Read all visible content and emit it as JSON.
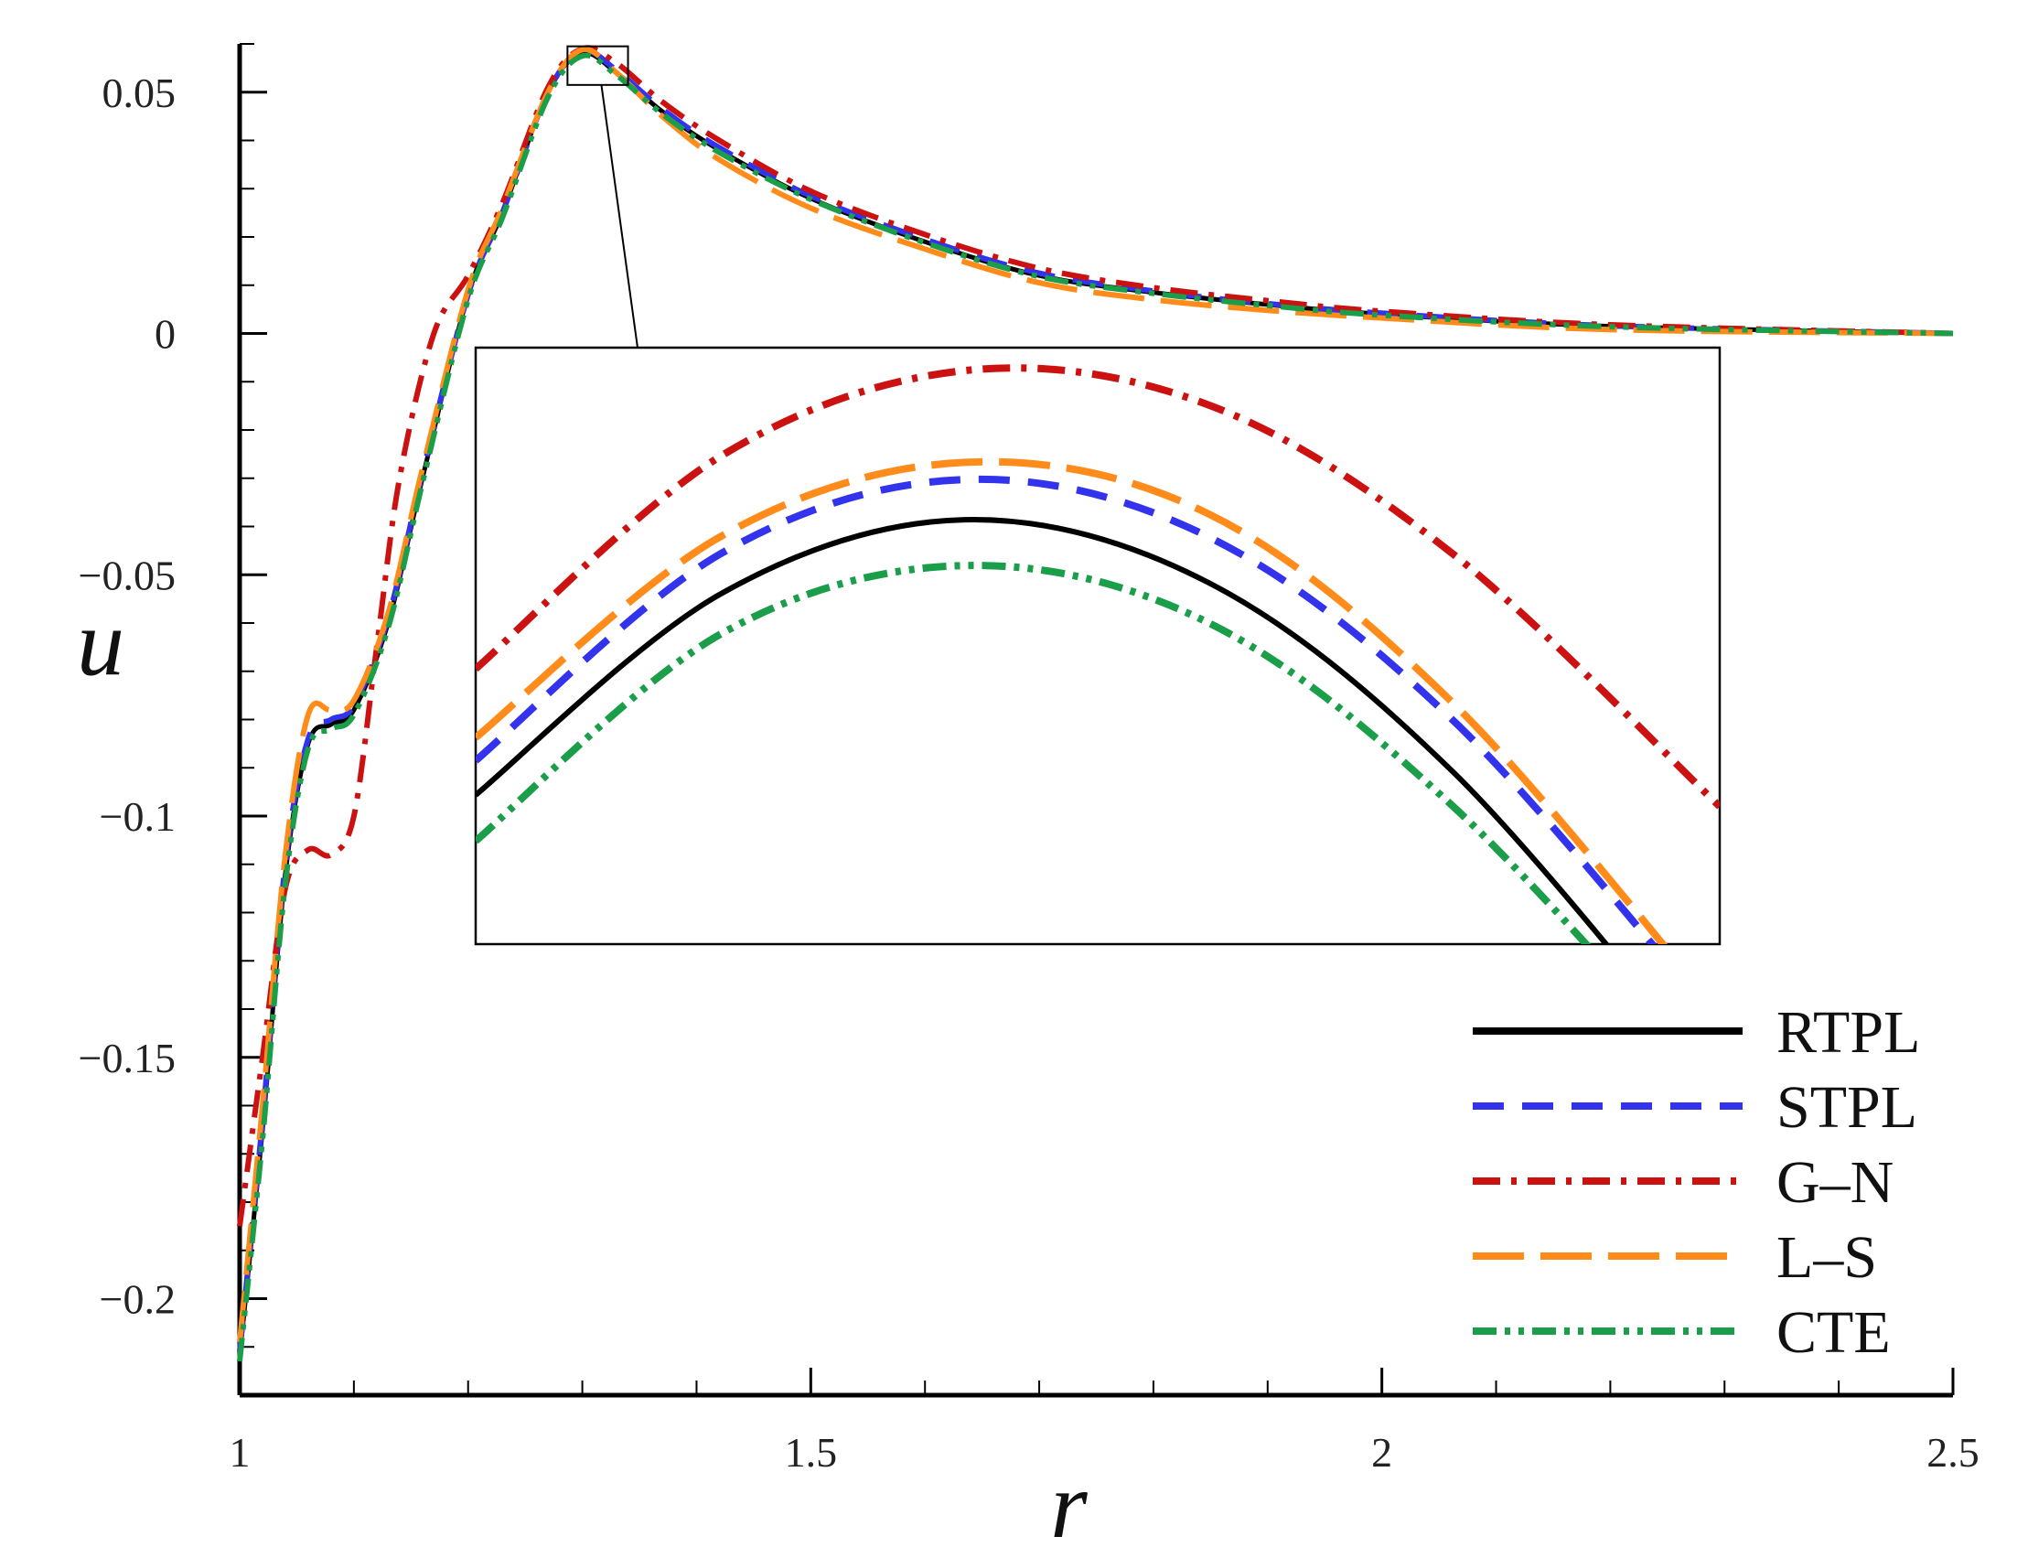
{
  "chart_data": {
    "type": "line",
    "xlabel": "r",
    "ylabel": "u",
    "xlim": [
      1,
      2.5
    ],
    "ylim": [
      -0.22,
      0.06
    ],
    "x_ticks": [
      1,
      1.5,
      2,
      2.5
    ],
    "x_tick_labels": [
      "1",
      "1.5",
      "2",
      "2.5"
    ],
    "y_ticks": [
      0.05,
      0,
      -0.05,
      -0.1,
      -0.15,
      -0.2
    ],
    "y_tick_labels": [
      "0.05",
      "0",
      "−0.05",
      "−0.1",
      "−0.15",
      "−0.2"
    ],
    "grid": false,
    "legend_position": "bottom-right",
    "series": [
      {
        "name": "RTPL",
        "color": "#000000",
        "dash": "solid",
        "x": [
          1.0,
          1.02,
          1.04,
          1.06,
          1.08,
          1.1,
          1.13,
          1.16,
          1.2,
          1.23,
          1.27,
          1.3,
          1.33,
          1.37,
          1.42,
          1.5,
          1.6,
          1.7,
          1.8,
          1.9,
          2.0,
          2.2,
          2.5
        ],
        "y": [
          -0.212,
          -0.165,
          -0.112,
          -0.085,
          -0.081,
          -0.078,
          -0.06,
          -0.03,
          0.008,
          0.025,
          0.05,
          0.058,
          0.054,
          0.046,
          0.038,
          0.028,
          0.019,
          0.012,
          0.0085,
          0.006,
          0.004,
          0.0015,
          0.0
        ]
      },
      {
        "name": "STPL",
        "color": "#3333ee",
        "dash": "dash",
        "x": [
          1.0,
          1.02,
          1.04,
          1.06,
          1.08,
          1.1,
          1.13,
          1.16,
          1.2,
          1.23,
          1.27,
          1.3,
          1.33,
          1.37,
          1.42,
          1.5,
          1.6,
          1.7,
          1.8,
          1.9,
          2.0,
          2.2,
          2.5
        ],
        "y": [
          -0.211,
          -0.163,
          -0.11,
          -0.084,
          -0.08,
          -0.077,
          -0.059,
          -0.029,
          0.008,
          0.025,
          0.05,
          0.0585,
          0.0545,
          0.0465,
          0.0385,
          0.0285,
          0.0195,
          0.0125,
          0.0088,
          0.0062,
          0.0042,
          0.0016,
          0.0
        ]
      },
      {
        "name": "G–N",
        "color": "#cc1111",
        "dash": "dashdot",
        "x": [
          1.0,
          1.02,
          1.04,
          1.06,
          1.08,
          1.1,
          1.12,
          1.14,
          1.17,
          1.2,
          1.23,
          1.27,
          1.3,
          1.33,
          1.37,
          1.42,
          1.5,
          1.6,
          1.7,
          1.8,
          1.9,
          2.0,
          2.2,
          2.5
        ],
        "y": [
          -0.185,
          -0.15,
          -0.115,
          -0.107,
          -0.108,
          -0.1,
          -0.065,
          -0.03,
          0.0,
          0.012,
          0.027,
          0.051,
          0.059,
          0.056,
          0.048,
          0.04,
          0.0295,
          0.0205,
          0.0135,
          0.0095,
          0.0068,
          0.0046,
          0.0018,
          0.0
        ]
      },
      {
        "name": "L–S",
        "color": "#ff8c1a",
        "dash": "longdash",
        "x": [
          1.0,
          1.02,
          1.04,
          1.06,
          1.08,
          1.1,
          1.13,
          1.16,
          1.2,
          1.23,
          1.27,
          1.3,
          1.33,
          1.37,
          1.42,
          1.5,
          1.6,
          1.7,
          1.8,
          1.9,
          2.0,
          2.2,
          2.5
        ],
        "y": [
          -0.209,
          -0.16,
          -0.108,
          -0.079,
          -0.078,
          -0.076,
          -0.058,
          -0.028,
          0.009,
          0.026,
          0.05,
          0.0588,
          0.054,
          0.045,
          0.036,
          0.026,
          0.0175,
          0.0105,
          0.007,
          0.0048,
          0.0032,
          0.0008,
          0.0
        ]
      },
      {
        "name": "CTE",
        "color": "#1a9e4a",
        "dash": "dashdotdot",
        "x": [
          1.0,
          1.02,
          1.04,
          1.06,
          1.08,
          1.1,
          1.13,
          1.16,
          1.2,
          1.23,
          1.27,
          1.3,
          1.33,
          1.37,
          1.42,
          1.5,
          1.6,
          1.7,
          1.8,
          1.9,
          2.0,
          2.2,
          2.5
        ],
        "y": [
          -0.213,
          -0.167,
          -0.114,
          -0.086,
          -0.082,
          -0.079,
          -0.061,
          -0.031,
          0.007,
          0.024,
          0.049,
          0.0575,
          0.0535,
          0.0455,
          0.0375,
          0.0278,
          0.0188,
          0.0118,
          0.0083,
          0.0058,
          0.0038,
          0.0014,
          0.0
        ]
      }
    ],
    "inset": {
      "source_x": [
        1.287,
        1.34
      ],
      "source_y": [
        0.0515,
        0.0595
      ],
      "x": [
        1.283,
        1.294,
        1.305,
        1.316,
        1.327,
        1.339
      ],
      "y_series": [
        [
          0.0558,
          0.05755,
          0.0582,
          0.05765,
          0.056,
          0.0533
        ],
        [
          0.0561,
          0.0579,
          0.05855,
          0.05805,
          0.05645,
          0.0538
        ],
        [
          0.0569,
          0.05875,
          0.0595,
          0.0592,
          0.0579,
          0.0557
        ],
        [
          0.0563,
          0.05805,
          0.0587,
          0.05825,
          0.0566,
          0.0539
        ],
        [
          0.0554,
          0.0572,
          0.0578,
          0.0573,
          0.0557,
          0.0532
        ]
      ],
      "ylim": [
        0.0545,
        0.0597
      ]
    }
  }
}
